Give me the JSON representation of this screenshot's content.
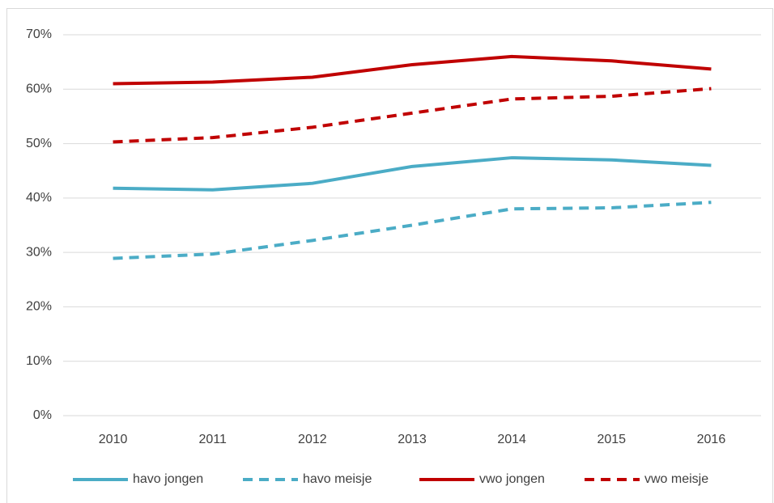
{
  "chart_data": {
    "type": "line",
    "categories": [
      "2010",
      "2011",
      "2012",
      "2013",
      "2014",
      "2015",
      "2016"
    ],
    "series": [
      {
        "name": "havo jongen",
        "color": "#4bacc6",
        "dashed": false,
        "values": [
          41.8,
          41.5,
          42.7,
          45.8,
          47.4,
          47.0,
          46.0
        ]
      },
      {
        "name": "havo meisje",
        "color": "#4bacc6",
        "dashed": true,
        "values": [
          28.9,
          29.7,
          32.2,
          35.0,
          38.0,
          38.2,
          39.2
        ]
      },
      {
        "name": "vwo jongen",
        "color": "#c00000",
        "dashed": false,
        "values": [
          61.0,
          61.3,
          62.2,
          64.5,
          66.0,
          65.2,
          63.7
        ]
      },
      {
        "name": "vwo meisje",
        "color": "#c00000",
        "dashed": true,
        "values": [
          50.3,
          51.1,
          53.0,
          55.6,
          58.2,
          58.7,
          60.1
        ]
      }
    ],
    "ylim": [
      0,
      70
    ],
    "yticks": [
      {
        "value": 0,
        "label": "0%"
      },
      {
        "value": 10,
        "label": "10%"
      },
      {
        "value": 20,
        "label": "20%"
      },
      {
        "value": 30,
        "label": "30%"
      },
      {
        "value": 40,
        "label": "40%"
      },
      {
        "value": 50,
        "label": "50%"
      },
      {
        "value": 60,
        "label": "60%"
      },
      {
        "value": 70,
        "label": "70%"
      }
    ],
    "grid": true,
    "legend": "bottom"
  }
}
